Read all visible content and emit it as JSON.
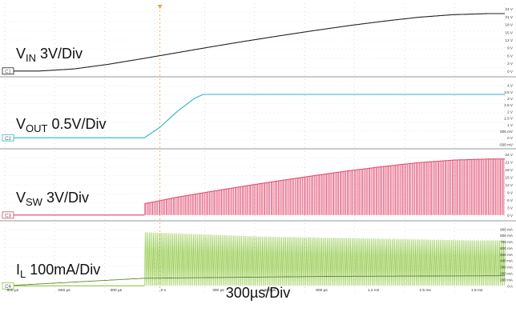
{
  "chart_data": {
    "type": "line",
    "title": "",
    "x_unit": "µs",
    "xlim": [
      -900,
      2000
    ],
    "timebase_label": "300µs/Div",
    "time_tick_labels": [
      "-900 µs",
      "-600 µs",
      "-300 µs",
      "0 s",
      "300 µs",
      "600 µs",
      "900 µs",
      "1.2 ms",
      "1.5 ms",
      "1.8 ms"
    ],
    "time_ticks": [
      -900,
      -600,
      -300,
      0,
      300,
      600,
      900,
      1200,
      1500,
      1800
    ],
    "channels": [
      {
        "id": "C1",
        "color": "#222222",
        "label_main": "V",
        "label_sub": "IN",
        "label_rest": " 3V/Div",
        "unit": "V",
        "ylim": [
          -1,
          25
        ],
        "scale_labels": [
          "24 V",
          "21 V",
          "18 V",
          "15 V",
          "12 V",
          "9 V",
          "6 V",
          "3 V",
          "0 V"
        ],
        "scale_values": [
          24,
          21,
          18,
          15,
          12,
          9,
          6,
          3,
          0
        ],
        "x": [
          -900,
          -700,
          -500,
          -300,
          -100,
          100,
          300,
          500,
          700,
          900,
          1100,
          1300,
          1500,
          1700,
          1900,
          2000
        ],
        "y": [
          0,
          0,
          0.8,
          2.6,
          4.8,
          7.1,
          9.4,
          11.6,
          13.7,
          15.7,
          17.6,
          19.3,
          20.8,
          21.8,
          22.2,
          22.2
        ]
      },
      {
        "id": "C2",
        "color": "#27b7c8",
        "label_main": "V",
        "label_sub": "OUT",
        "label_rest": " 0.5V/Div",
        "unit": "V",
        "ylim": [
          -0.6,
          4.4
        ],
        "scale_labels": [
          "4 V",
          "3.5 V",
          "3 V",
          "2.5 V",
          "2 V",
          "1.5 V",
          "1 V",
          "500 mV",
          "0 V",
          "-500 mV"
        ],
        "scale_values": [
          4,
          3.5,
          3,
          2.5,
          2,
          1.5,
          1,
          0.5,
          0,
          -0.5
        ],
        "x": [
          -900,
          -90,
          0,
          100,
          200,
          250,
          300,
          2000
        ],
        "y": [
          0,
          0,
          0.8,
          2.0,
          3.0,
          3.3,
          3.3,
          3.3
        ]
      },
      {
        "id": "C3",
        "color": "#e0436a",
        "label_main": "V",
        "label_sub": "SW",
        "label_rest": " 3V/Div",
        "unit": "V",
        "ylim": [
          -1,
          25
        ],
        "scale_labels": [
          "24 V",
          "21 V",
          "18 V",
          "15 V",
          "12 V",
          "9 V",
          "6 V",
          "3 V",
          "0 V"
        ],
        "scale_values": [
          24,
          21,
          18,
          15,
          12,
          9,
          6,
          3,
          0
        ],
        "switching_start": -90,
        "envelope_x": [
          -900,
          -90,
          100,
          300,
          500,
          700,
          900,
          1100,
          1300,
          1500,
          1700,
          1900,
          2000
        ],
        "envelope_y": [
          0,
          4.5,
          7.1,
          9.4,
          11.6,
          13.7,
          15.7,
          17.6,
          19.3,
          20.8,
          21.8,
          22.2,
          22.2
        ]
      },
      {
        "id": "C4",
        "color": "#8cc63f",
        "label_main": "I",
        "label_sub": "L",
        "label_rest": " 100mA/Div",
        "unit": "mA",
        "ylim": [
          -60,
          980
        ],
        "scale_labels": [
          "900 mA",
          "800 mA",
          "700 mA",
          "600 mA",
          "500 mA",
          "400 mA",
          "300 mA",
          "200 mA",
          "100 mA",
          "0 A"
        ],
        "scale_values": [
          900,
          800,
          700,
          600,
          500,
          400,
          300,
          200,
          100,
          0
        ],
        "switching_start": -90,
        "envelope_x": [
          -900,
          -90,
          200,
          600,
          1000,
          1400,
          1800,
          2000
        ],
        "envelope_y": [
          0,
          850,
          820,
          780,
          760,
          740,
          720,
          720
        ],
        "avg_x": [
          -900,
          -90,
          1000,
          2000
        ],
        "avg_y": [
          0,
          120,
          150,
          160
        ]
      }
    ],
    "trigger": {
      "time": 0,
      "label": "T"
    }
  }
}
